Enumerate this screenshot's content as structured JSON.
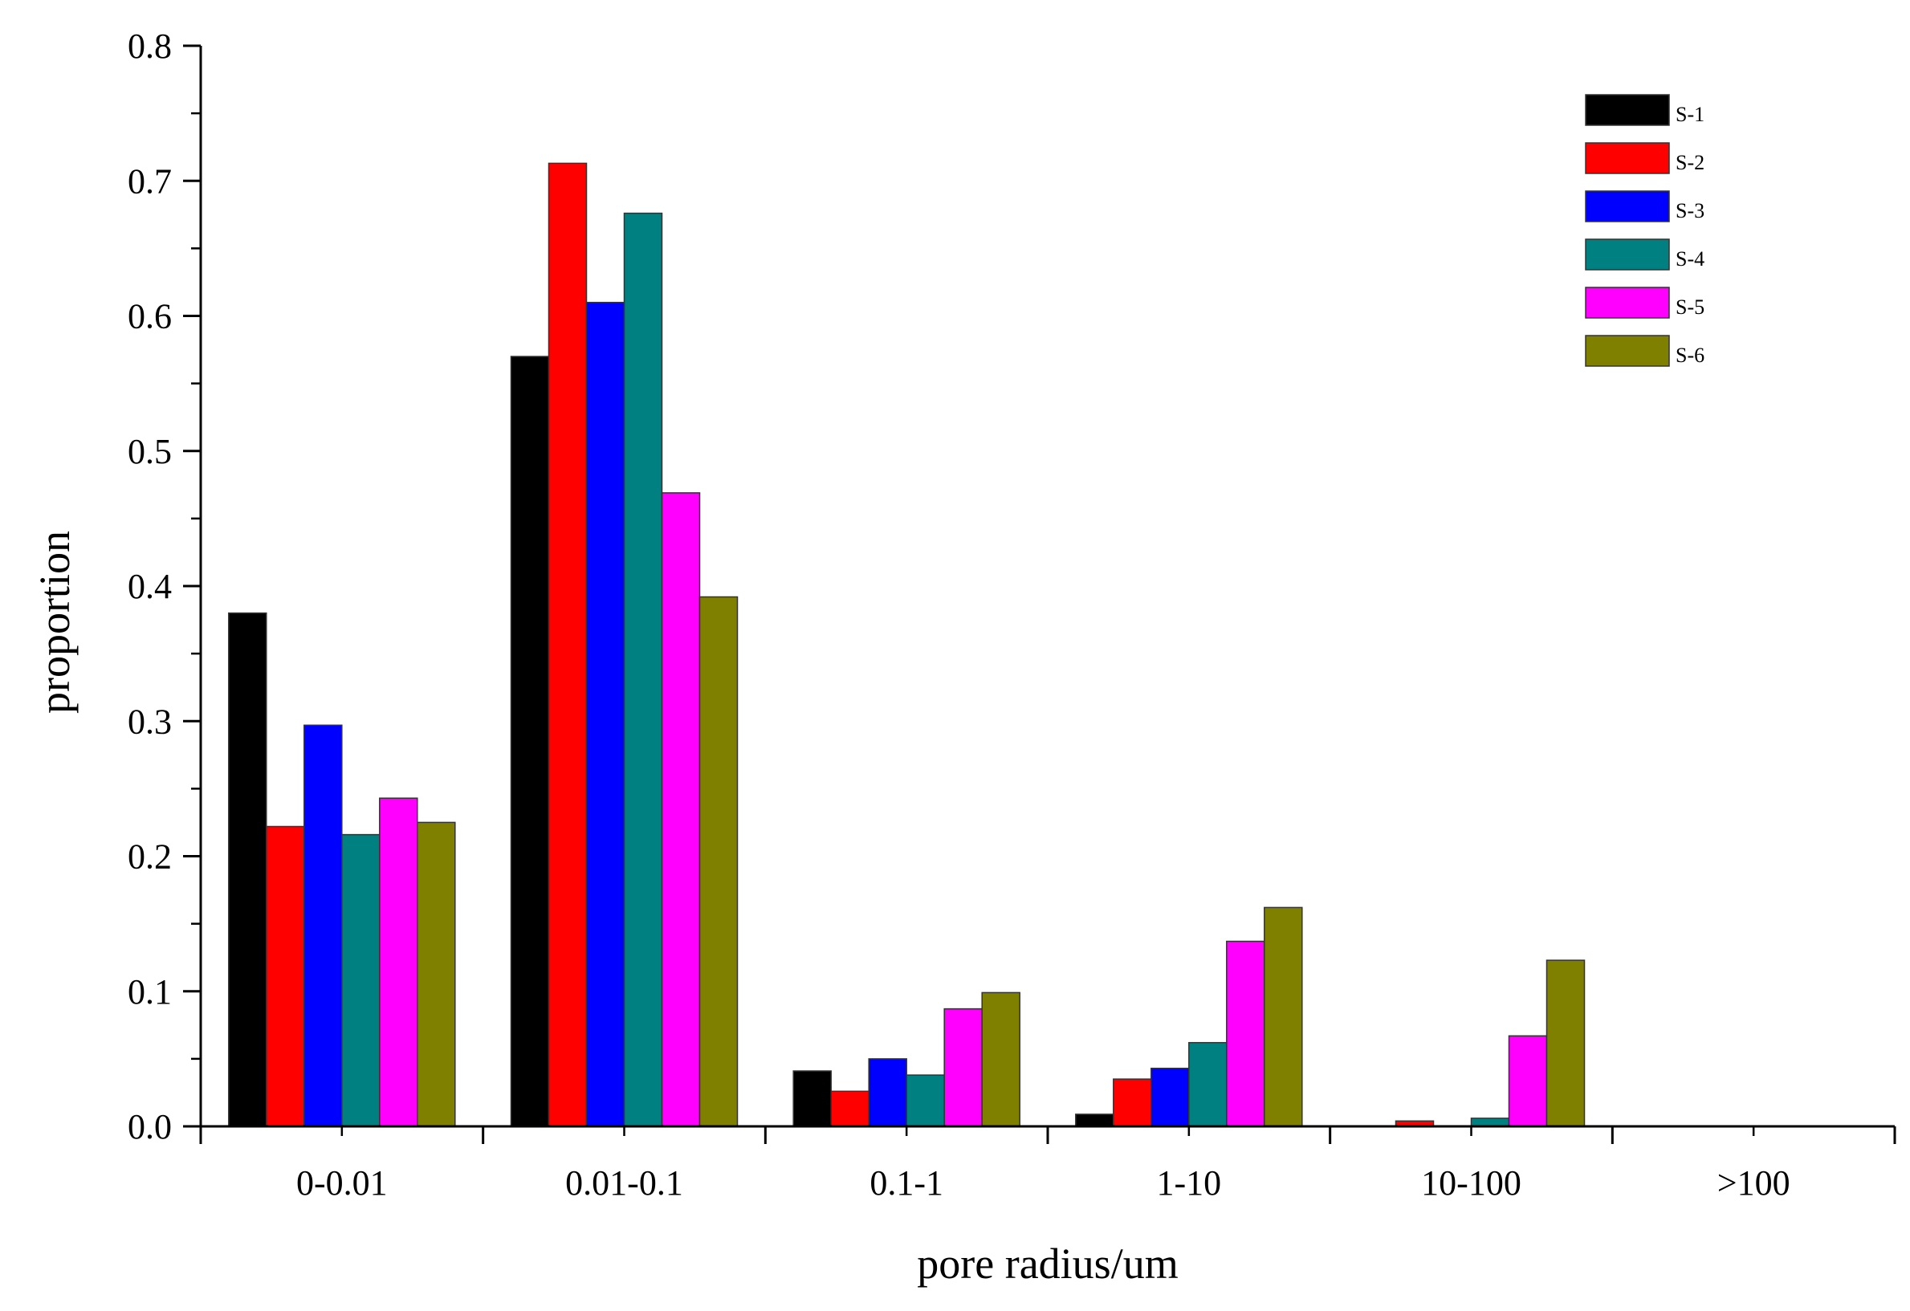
{
  "chart_data": {
    "type": "bar",
    "title": "",
    "xlabel": "pore radius/um",
    "ylabel": "proportion",
    "ylim": [
      0,
      0.8
    ],
    "yticks": [
      "0.0",
      "0.1",
      "0.2",
      "0.3",
      "0.4",
      "0.5",
      "0.6",
      "0.7",
      "0.8"
    ],
    "categories": [
      "0-0.01",
      "0.01-0.1",
      "0.1-1",
      "1-10",
      "10-100",
      ">100"
    ],
    "legend_position": "top-right",
    "grid": false,
    "series": [
      {
        "name": "S-1",
        "color": "#000000",
        "values": [
          0.38,
          0.57,
          0.041,
          0.009,
          0.0,
          0.0
        ]
      },
      {
        "name": "S-2",
        "color": "#ff0000",
        "values": [
          0.222,
          0.713,
          0.026,
          0.035,
          0.004,
          0.0
        ]
      },
      {
        "name": "S-3",
        "color": "#0000ff",
        "values": [
          0.297,
          0.61,
          0.05,
          0.043,
          0.0,
          0.0
        ]
      },
      {
        "name": "S-4",
        "color": "#008080",
        "values": [
          0.216,
          0.676,
          0.038,
          0.062,
          0.006,
          0.0
        ]
      },
      {
        "name": "S-5",
        "color": "#ff00ff",
        "values": [
          0.243,
          0.469,
          0.087,
          0.137,
          0.067,
          0.0
        ]
      },
      {
        "name": "S-6",
        "color": "#808000",
        "values": [
          0.225,
          0.392,
          0.099,
          0.162,
          0.123,
          0.0
        ]
      }
    ]
  }
}
